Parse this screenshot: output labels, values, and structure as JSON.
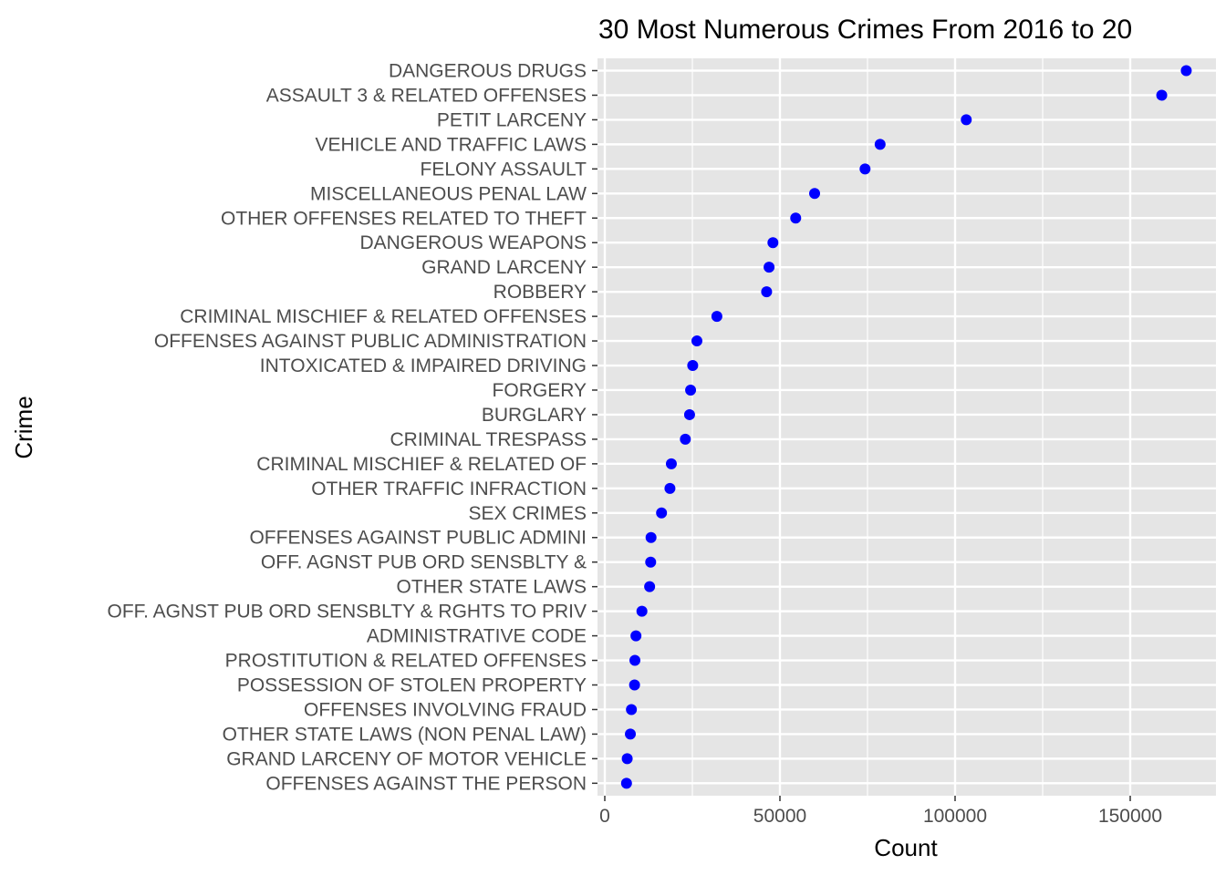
{
  "chart_data": {
    "type": "scatter",
    "title": "30 Most Numerous Crimes From 2016 to 20",
    "xlabel": "Count",
    "ylabel": "Crime",
    "xlim": [
      -1000,
      172000
    ],
    "x_ticks": [
      0,
      50000,
      100000,
      150000
    ],
    "x_tick_labels": [
      "0",
      "50000",
      "100000",
      "150000"
    ],
    "grid": true,
    "legend": "none",
    "point_color": "#0000ff",
    "panel_color": "#e5e5e5",
    "categories": [
      "DANGEROUS DRUGS",
      "ASSAULT 3 & RELATED OFFENSES",
      "PETIT LARCENY",
      "VEHICLE AND TRAFFIC LAWS",
      "FELONY ASSAULT",
      "MISCELLANEOUS PENAL LAW",
      "OTHER OFFENSES RELATED TO THEFT",
      "DANGEROUS WEAPONS",
      "GRAND LARCENY",
      "ROBBERY",
      "CRIMINAL MISCHIEF & RELATED OFFENSES",
      "OFFENSES AGAINST PUBLIC ADMINISTRATION",
      "INTOXICATED & IMPAIRED DRIVING",
      "FORGERY",
      "BURGLARY",
      "CRIMINAL TRESPASS",
      "CRIMINAL MISCHIEF & RELATED OF",
      "OTHER TRAFFIC INFRACTION",
      "SEX CRIMES",
      "OFFENSES AGAINST PUBLIC ADMINI",
      "OFF. AGNST PUB ORD SENSBLTY &",
      "OTHER STATE LAWS",
      "OFF. AGNST PUB ORD SENSBLTY & RGHTS TO PRIV",
      "ADMINISTRATIVE CODE",
      "PROSTITUTION & RELATED OFFENSES",
      "POSSESSION OF STOLEN PROPERTY",
      "OFFENSES INVOLVING FRAUD",
      "OTHER STATE LAWS (NON PENAL LAW)",
      "GRAND LARCENY OF MOTOR VEHICLE",
      "OFFENSES AGAINST THE PERSON"
    ],
    "values": [
      166000,
      159000,
      103200,
      78600,
      74300,
      59900,
      54500,
      48000,
      46900,
      46200,
      32000,
      26300,
      25100,
      24500,
      24200,
      23000,
      19000,
      18600,
      16200,
      13200,
      13100,
      12800,
      10600,
      8900,
      8600,
      8500,
      7600,
      7300,
      6400,
      6200
    ]
  }
}
